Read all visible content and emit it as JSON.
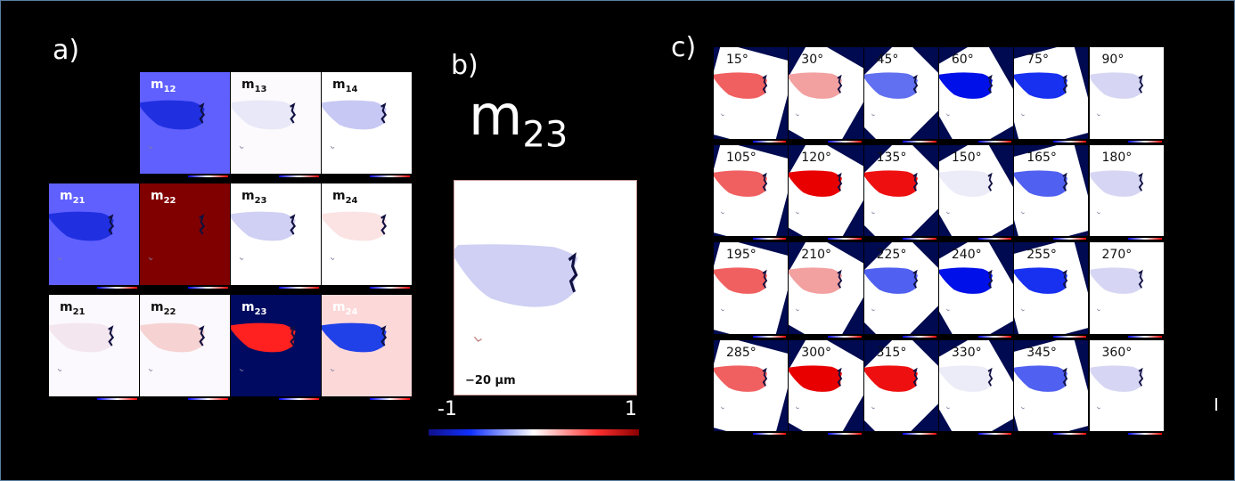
{
  "panels": {
    "a": "a)",
    "b": "b)",
    "c": "c)"
  },
  "panel_a": {
    "tiles": [
      {
        "m": "m",
        "sub": "12",
        "row": 0,
        "col": 1,
        "bg": "#6060ff",
        "blob": "#2030e0",
        "label_color": "#ffffff"
      },
      {
        "m": "m",
        "sub": "13",
        "row": 0,
        "col": 2,
        "bg": "#fdfafd",
        "blob": "#e8e8f8",
        "label_color": "#111111"
      },
      {
        "m": "m",
        "sub": "14",
        "row": 0,
        "col": 3,
        "bg": "#ffffff",
        "blob": "#c8c8f4",
        "label_color": "#111111"
      },
      {
        "m": "m",
        "sub": "21",
        "row": 1,
        "col": 0,
        "bg": "#6060ff",
        "blob": "#2030e0",
        "label_color": "#ffffff"
      },
      {
        "m": "m",
        "sub": "22",
        "row": 1,
        "col": 1,
        "bg": "#800000",
        "blob": "#800000",
        "label_color": "#ffffff"
      },
      {
        "m": "m",
        "sub": "23",
        "row": 1,
        "col": 2,
        "bg": "#ffffff",
        "blob": "#d0d0f4",
        "label_color": "#111111"
      },
      {
        "m": "m",
        "sub": "24",
        "row": 1,
        "col": 3,
        "bg": "#ffffff",
        "blob": "#fbe3e3",
        "label_color": "#111111"
      },
      {
        "m": "m",
        "sub": "21",
        "row": 2,
        "col": 0,
        "bg": "#fbf9fd",
        "blob": "#f4e6ee",
        "label_color": "#111111"
      },
      {
        "m": "m",
        "sub": "22",
        "row": 2,
        "col": 1,
        "bg": "#fbf9fd",
        "blob": "#f6d2d2",
        "label_color": "#111111"
      },
      {
        "m": "m",
        "sub": "23",
        "row": 2,
        "col": 2,
        "bg": "#000a60",
        "blob": "#ff2020",
        "label_color": "#ffffff"
      },
      {
        "m": "m",
        "sub": "24",
        "row": 2,
        "col": 3,
        "bg": "#fcd8d8",
        "blob": "#2040e8",
        "label_color": "#ffffff"
      }
    ]
  },
  "panel_b": {
    "m": "m",
    "sub": "23",
    "blob": "#cfd0f4",
    "scale_bar": "−20 μm",
    "colorbar": {
      "min": "-1",
      "max": "1",
      "colors": [
        "#10108a",
        "#1030ff",
        "#ffffff",
        "#ff3030",
        "#8a0000"
      ]
    }
  },
  "panel_c": {
    "tiles": [
      {
        "angle": "15°",
        "deg": 15,
        "blob": "#f06060"
      },
      {
        "angle": "30°",
        "deg": 30,
        "blob": "#f2a0a0"
      },
      {
        "angle": "45°",
        "deg": 45,
        "blob": "#6070f0"
      },
      {
        "angle": "60°",
        "deg": 60,
        "blob": "#0010e8"
      },
      {
        "angle": "75°",
        "deg": 75,
        "blob": "#1830f0"
      },
      {
        "angle": "90°",
        "deg": 90,
        "blob": "#d6d6f4"
      },
      {
        "angle": "105°",
        "deg": 105,
        "blob": "#f06060"
      },
      {
        "angle": "120°",
        "deg": 120,
        "blob": "#e80000"
      },
      {
        "angle": "135°",
        "deg": 135,
        "blob": "#ee1010"
      },
      {
        "angle": "150°",
        "deg": 150,
        "blob": "#ecebf8"
      },
      {
        "angle": "165°",
        "deg": 165,
        "blob": "#5060f0"
      },
      {
        "angle": "180°",
        "deg": 180,
        "blob": "#d6d6f4"
      },
      {
        "angle": "195°",
        "deg": 195,
        "blob": "#f06060"
      },
      {
        "angle": "210°",
        "deg": 210,
        "blob": "#f2a0a0"
      },
      {
        "angle": "225°",
        "deg": 225,
        "blob": "#5060f0"
      },
      {
        "angle": "240°",
        "deg": 240,
        "blob": "#0010e8"
      },
      {
        "angle": "255°",
        "deg": 255,
        "blob": "#1830f0"
      },
      {
        "angle": "270°",
        "deg": 270,
        "blob": "#d6d6f4"
      },
      {
        "angle": "285°",
        "deg": 285,
        "blob": "#f06060"
      },
      {
        "angle": "300°",
        "deg": 300,
        "blob": "#e80000"
      },
      {
        "angle": "315°",
        "deg": 315,
        "blob": "#ee1010"
      },
      {
        "angle": "330°",
        "deg": 330,
        "blob": "#ecebf8"
      },
      {
        "angle": "345°",
        "deg": 345,
        "blob": "#5060f0"
      },
      {
        "angle": "360°",
        "deg": 360,
        "blob": "#d6d6f4"
      }
    ],
    "outside_color": "#000a50"
  }
}
